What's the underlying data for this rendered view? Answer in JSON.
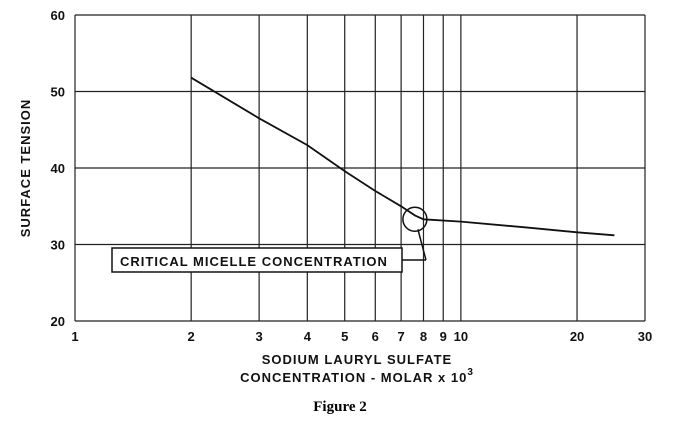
{
  "chart_data": {
    "type": "line",
    "x_scale": "log",
    "y_scale": "linear",
    "xlim": [
      1,
      30
    ],
    "ylim": [
      20,
      60
    ],
    "grid": true,
    "x_ticks": [
      1,
      2,
      3,
      4,
      5,
      6,
      7,
      8,
      9,
      10,
      20,
      30
    ],
    "y_ticks": [
      20,
      30,
      40,
      50,
      60
    ],
    "ylabel": "SURFACE TENSION",
    "xlabel_line1": "SODIUM LAURYL SULFATE",
    "xlabel_line2": "CONCENTRATION - MOLAR x 10",
    "xlabel_exponent": "3",
    "series": [
      {
        "x": [
          2,
          3,
          4,
          5,
          6,
          7,
          7.6,
          8,
          10,
          15,
          20,
          25
        ],
        "y": [
          51.8,
          46.5,
          43,
          39.6,
          37,
          35,
          33.8,
          33.3,
          33,
          32.2,
          31.6,
          31.2
        ]
      }
    ],
    "annotation": {
      "text": "CRITICAL MICELLE CONCENTRATION",
      "x": 7.6,
      "y": 33.3
    }
  },
  "caption": "Figure 2"
}
